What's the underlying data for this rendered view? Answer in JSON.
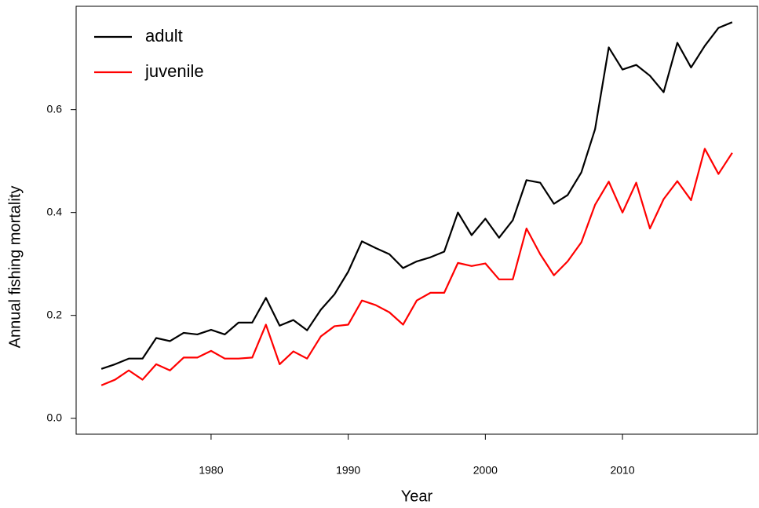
{
  "chart_data": {
    "type": "line",
    "xlabel": "Year",
    "ylabel": "Annual fishing mortality",
    "x": [
      1972,
      1973,
      1974,
      1975,
      1976,
      1977,
      1978,
      1979,
      1980,
      1981,
      1982,
      1983,
      1984,
      1985,
      1986,
      1987,
      1988,
      1989,
      1990,
      1991,
      1992,
      1993,
      1994,
      1995,
      1996,
      1997,
      1998,
      1999,
      2000,
      2001,
      2002,
      2003,
      2004,
      2005,
      2006,
      2007,
      2008,
      2009,
      2010,
      2011,
      2012,
      2013,
      2014,
      2015,
      2016,
      2017,
      2018
    ],
    "series": [
      {
        "name": "adult",
        "color": "#000000",
        "values": [
          0.096,
          0.105,
          0.116,
          0.116,
          0.156,
          0.15,
          0.166,
          0.163,
          0.172,
          0.163,
          0.186,
          0.186,
          0.234,
          0.18,
          0.191,
          0.171,
          0.211,
          0.241,
          0.285,
          0.344,
          0.331,
          0.319,
          0.292,
          0.305,
          0.313,
          0.324,
          0.4,
          0.356,
          0.388,
          0.351,
          0.385,
          0.463,
          0.458,
          0.417,
          0.434,
          0.478,
          0.562,
          0.721,
          0.678,
          0.687,
          0.666,
          0.634,
          0.73,
          0.682,
          0.724,
          0.759,
          0.77
        ]
      },
      {
        "name": "juvenile",
        "color": "#ff0000",
        "values": [
          0.064,
          0.075,
          0.093,
          0.075,
          0.105,
          0.093,
          0.118,
          0.118,
          0.131,
          0.116,
          0.116,
          0.118,
          0.182,
          0.105,
          0.13,
          0.116,
          0.159,
          0.179,
          0.182,
          0.229,
          0.22,
          0.206,
          0.182,
          0.229,
          0.244,
          0.244,
          0.302,
          0.296,
          0.301,
          0.27,
          0.27,
          0.369,
          0.319,
          0.278,
          0.305,
          0.342,
          0.415,
          0.46,
          0.4,
          0.458,
          0.369,
          0.426,
          0.461,
          0.424,
          0.524,
          0.475,
          0.516
        ]
      }
    ],
    "xlim": [
      1970.16,
      2019.84
    ],
    "xticks": [
      1980,
      1990,
      2000,
      2010
    ],
    "ylim": [
      -0.031,
      0.801
    ],
    "yticks": [
      {
        "value": 0,
        "label": "0.0"
      },
      0.2,
      0.4,
      0.6
    ],
    "legend": "top-left"
  }
}
